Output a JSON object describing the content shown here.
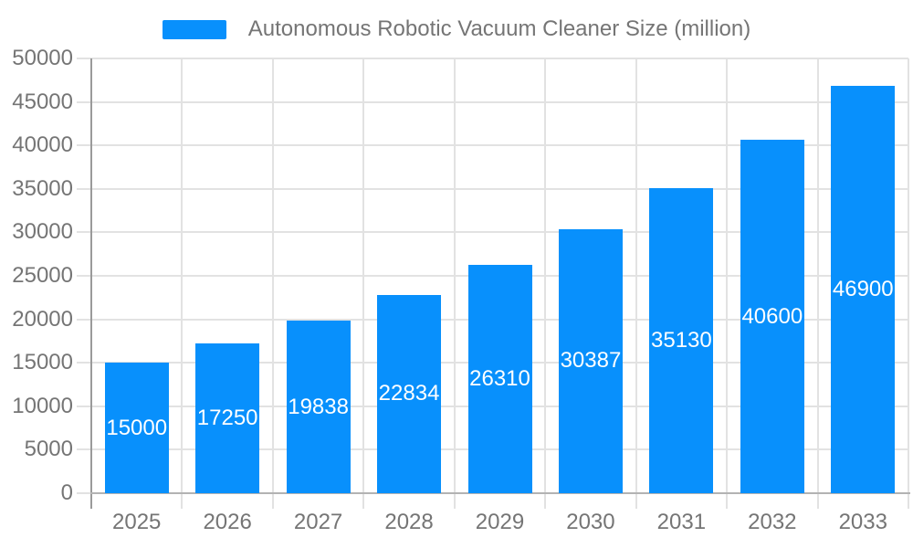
{
  "chart_data": {
    "type": "bar",
    "title": "Autonomous Robotic Vacuum Cleaner Size (million)",
    "legend": {
      "position": "top",
      "entries": [
        "Autonomous Robotic Vacuum Cleaner Size (million)"
      ]
    },
    "categories": [
      "2025",
      "2026",
      "2027",
      "2028",
      "2029",
      "2030",
      "2031",
      "2032",
      "2033"
    ],
    "series": [
      {
        "name": "Autonomous Robotic Vacuum Cleaner Size (million)",
        "values": [
          15000,
          17250,
          19838,
          22834,
          26310,
          30387,
          35130,
          40600,
          46900
        ]
      }
    ],
    "value_labels_shown": true,
    "xlabel": "",
    "ylabel": "",
    "ylim": [
      0,
      50000
    ],
    "yticks": [
      0,
      5000,
      10000,
      15000,
      20000,
      25000,
      30000,
      35000,
      40000,
      45000,
      50000
    ],
    "grid": true,
    "colors": {
      "bar": "#0890fc",
      "value_label": "#ffffff",
      "axis_text": "#757575",
      "legend_text": "#757575",
      "gridline": "#e2e2e2",
      "y_axis_line": "#9a9a9a",
      "x_axis_line": "#b3b3b3"
    }
  }
}
